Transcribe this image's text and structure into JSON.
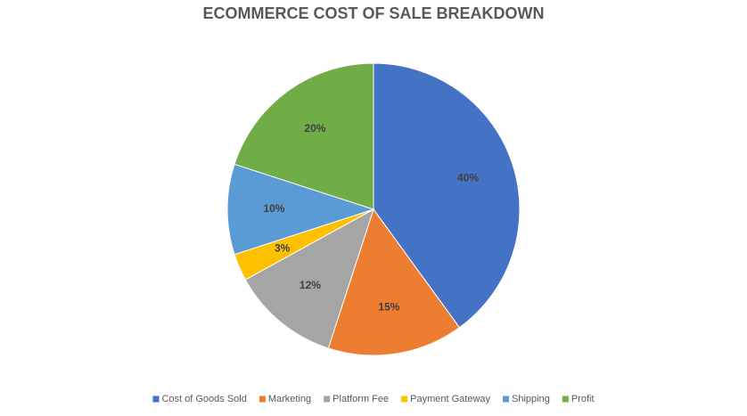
{
  "chart_data": {
    "type": "pie",
    "title": "ECOMMERCE COST OF SALE BREAKDOWN",
    "categories": [
      "Cost of Goods Sold",
      "Marketing",
      "Platform Fee",
      "Payment Gateway",
      "Shipping",
      "Profit"
    ],
    "values": [
      40,
      15,
      12,
      3,
      10,
      20
    ],
    "value_labels": [
      "40%",
      "15%",
      "12%",
      "3%",
      "10%",
      "20%"
    ],
    "colors": [
      "#4472c4",
      "#ed7d31",
      "#a5a5a5",
      "#ffc000",
      "#5b9bd5",
      "#70ad47"
    ],
    "legend": "bottom"
  }
}
